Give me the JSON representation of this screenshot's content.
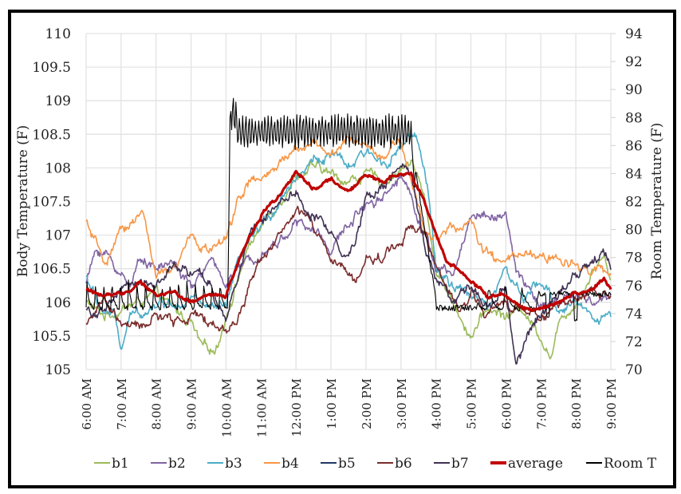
{
  "chart_data": {
    "type": "line",
    "title": "",
    "xlabel": "",
    "ylabel": "Body Temperature (F)",
    "y2label": "Room Temperature (F)",
    "ylim": [
      105,
      110
    ],
    "y2lim": [
      70,
      94
    ],
    "yticks": [
      "105",
      "105.5",
      "106",
      "106.5",
      "107",
      "107.5",
      "108",
      "108.5",
      "109",
      "109.5",
      "110"
    ],
    "y2ticks": [
      "70",
      "72",
      "74",
      "76",
      "78",
      "80",
      "82",
      "84",
      "86",
      "88",
      "90",
      "92",
      "94"
    ],
    "x_unit": "hours since 6:00 AM",
    "xlim": [
      0,
      15
    ],
    "categories": [
      "6:00 AM",
      "7:00 AM",
      "8:00 AM",
      "9:00 AM",
      "10:00 AM",
      "11:00 AM",
      "12:00 PM",
      "1:00 PM",
      "2:00 PM",
      "3:00 PM",
      "4:00 PM",
      "5:00 PM",
      "6:00 PM",
      "7:00 PM",
      "8:00 PM",
      "9:00 PM"
    ],
    "grid": true,
    "legend_position": "bottom",
    "series": [
      {
        "name": "b1",
        "axis": "left",
        "color": "#9bbb59",
        "width": 1.6,
        "x": [
          0,
          0.5,
          1,
          1.5,
          2,
          2.5,
          3,
          3.3,
          3.7,
          4,
          4.3,
          4.7,
          5,
          5.5,
          6,
          6.5,
          7,
          7.5,
          8,
          8.5,
          9,
          9.3,
          9.7,
          10,
          10.5,
          11,
          11.5,
          12,
          12.5,
          13,
          13.3,
          13.6,
          14,
          14.5,
          14.8,
          15
        ],
        "y": [
          106.0,
          105.8,
          105.9,
          106.0,
          106.1,
          105.9,
          105.7,
          105.3,
          105.3,
          105.8,
          106.3,
          106.9,
          107.1,
          107.5,
          107.9,
          108.0,
          107.9,
          107.8,
          107.9,
          107.8,
          108.0,
          108.1,
          107.5,
          106.5,
          106.0,
          105.5,
          105.9,
          105.8,
          105.9,
          105.5,
          105.2,
          105.8,
          106.0,
          106.5,
          106.7,
          106.4
        ]
      },
      {
        "name": "b2",
        "axis": "left",
        "color": "#8064a2",
        "width": 1.6,
        "x": [
          0,
          0.3,
          0.6,
          1,
          1.3,
          1.6,
          2,
          2.5,
          3,
          3.5,
          4,
          4.3,
          4.7,
          5,
          5.5,
          6,
          6.3,
          6.7,
          7,
          7.3,
          7.7,
          8,
          8.5,
          9,
          9.3,
          9.7,
          10,
          10.5,
          11,
          11.5,
          12,
          12.3,
          12.7,
          13,
          13.5,
          14,
          14.5,
          15
        ],
        "y": [
          106.3,
          106.8,
          106.7,
          106.4,
          106.3,
          106.7,
          106.5,
          106.6,
          106.2,
          106.6,
          106.3,
          106.5,
          106.6,
          106.8,
          106.9,
          107.2,
          107.1,
          107.0,
          106.8,
          107.0,
          107.3,
          107.5,
          107.6,
          107.9,
          107.6,
          107.0,
          106.5,
          106.4,
          107.3,
          107.3,
          107.3,
          106.4,
          106.2,
          105.9,
          106.0,
          106.1,
          106.0,
          106.1
        ]
      },
      {
        "name": "b3",
        "axis": "left",
        "color": "#4bacc6",
        "width": 1.6,
        "x": [
          0,
          0.4,
          0.8,
          1,
          1.3,
          1.7,
          2,
          2.5,
          3,
          3.5,
          4,
          4.3,
          4.7,
          5,
          5.5,
          6,
          6.5,
          7,
          7.5,
          8,
          8.5,
          9,
          9.3,
          9.5,
          9.8,
          10,
          10.5,
          11,
          11.5,
          12,
          12.5,
          13,
          13.5,
          14,
          14.5,
          15
        ],
        "y": [
          106.4,
          105.9,
          105.8,
          105.3,
          105.8,
          105.9,
          106.0,
          106.0,
          106.1,
          105.9,
          105.9,
          106.5,
          106.9,
          107.1,
          107.5,
          107.9,
          108.1,
          108.2,
          108.0,
          108.2,
          108.1,
          108.3,
          108.5,
          108.3,
          107.6,
          106.5,
          106.2,
          106.1,
          106.0,
          106.5,
          106.0,
          106.3,
          105.9,
          106.0,
          105.8,
          105.8
        ]
      },
      {
        "name": "b4",
        "axis": "left",
        "color": "#f79646",
        "width": 1.6,
        "x": [
          0,
          0.3,
          0.6,
          1,
          1.3,
          1.6,
          2,
          2.3,
          2.6,
          3,
          3.3,
          3.6,
          4,
          4.3,
          4.7,
          5,
          5.5,
          6,
          6.5,
          7,
          7.5,
          8,
          8.5,
          9,
          9.3,
          9.7,
          10,
          10.5,
          11,
          11.3,
          11.7,
          12,
          12.5,
          13,
          13.5,
          14,
          14.5,
          15
        ],
        "y": [
          107.2,
          106.8,
          106.6,
          107.0,
          107.2,
          107.4,
          106.4,
          106.4,
          106.5,
          107.0,
          106.8,
          106.8,
          106.9,
          107.5,
          107.8,
          107.8,
          108.0,
          108.3,
          108.4,
          108.2,
          108.4,
          108.4,
          108.2,
          108.4,
          107.8,
          107.0,
          107.0,
          107.1,
          107.2,
          106.8,
          106.6,
          106.6,
          106.7,
          106.7,
          106.6,
          106.6,
          106.5,
          106.4
        ]
      },
      {
        "name": "b5",
        "axis": "left",
        "color": "#1f3864",
        "width": 1.4,
        "x": [],
        "y": []
      },
      {
        "name": "b6",
        "axis": "left",
        "color": "#7b2c2c",
        "width": 1.6,
        "x": [
          0,
          0.5,
          1,
          1.5,
          2,
          2.5,
          3,
          3.5,
          4,
          4.3,
          4.7,
          5,
          5.5,
          6,
          6.3,
          6.7,
          7,
          7.3,
          7.7,
          8,
          8.5,
          9,
          9.3,
          9.7,
          10,
          10.3,
          10.7,
          11,
          11.5,
          12,
          12.5,
          13,
          13.5,
          14,
          14.5,
          15
        ],
        "y": [
          105.7,
          106.0,
          105.7,
          105.6,
          105.8,
          105.7,
          105.8,
          105.7,
          105.6,
          105.7,
          106.3,
          106.7,
          107.0,
          107.3,
          107.3,
          106.9,
          106.6,
          106.5,
          106.3,
          106.6,
          106.7,
          106.9,
          107.2,
          107.0,
          106.5,
          106.2,
          105.8,
          106.2,
          105.8,
          106.0,
          105.9,
          105.8,
          106.0,
          106.0,
          106.2,
          106.1
        ]
      },
      {
        "name": "b7",
        "axis": "left",
        "color": "#403152",
        "width": 1.6,
        "x": [
          0,
          0.5,
          1,
          1.5,
          2,
          2.5,
          3,
          3.5,
          4,
          4.3,
          4.7,
          5,
          5.5,
          6,
          6.3,
          6.7,
          7,
          7.3,
          7.7,
          8,
          8.5,
          9,
          9.3,
          9.7,
          10,
          10.5,
          11,
          11.5,
          12,
          12.3,
          12.6,
          13,
          13.5,
          14,
          14.5,
          14.8,
          15
        ],
        "y": [
          105.9,
          105.8,
          106.2,
          106.3,
          106.3,
          106.5,
          106.4,
          106.3,
          105.8,
          106.2,
          107.1,
          107.2,
          107.5,
          107.7,
          107.3,
          107.2,
          107.1,
          106.7,
          106.9,
          107.6,
          107.8,
          108.0,
          107.8,
          106.8,
          106.4,
          106.0,
          106.2,
          106.0,
          106.2,
          105.1,
          105.5,
          105.8,
          106.1,
          106.5,
          106.6,
          106.8,
          106.5
        ]
      },
      {
        "name": "average",
        "axis": "left",
        "color": "#c00000",
        "width": 3.2,
        "x": [
          0,
          0.5,
          1,
          1.5,
          2,
          2.5,
          3,
          3.5,
          4,
          4.2,
          4.5,
          5,
          5.5,
          6,
          6.5,
          7,
          7.5,
          8,
          8.5,
          9,
          9.3,
          9.6,
          10,
          10.3,
          10.7,
          11,
          11.5,
          12,
          12.5,
          13,
          13.5,
          14,
          14.5,
          14.8,
          15
        ],
        "y": [
          106.2,
          106.1,
          106.1,
          106.3,
          106.1,
          106.15,
          106.0,
          106.1,
          106.1,
          106.4,
          106.8,
          107.3,
          107.6,
          107.95,
          107.7,
          107.8,
          107.65,
          107.9,
          107.8,
          107.95,
          107.9,
          107.6,
          107.0,
          106.6,
          106.5,
          106.3,
          106.1,
          106.1,
          105.9,
          105.9,
          106.0,
          106.1,
          106.2,
          106.35,
          106.2
        ]
      },
      {
        "name": "Room T",
        "axis": "right",
        "color": "#000000",
        "width": 1.1,
        "note": "Cycles ~74-76 before 10 AM; jumps to ~86-88 oscillating until ~3:20 PM; decays to ~74 with periodic dips to ~72-74 afterwards",
        "x": [
          0,
          4.05,
          4.1,
          4.2,
          9.3,
          9.35,
          9.6,
          10,
          10.5,
          11,
          12,
          13,
          14,
          15
        ],
        "y": [
          74.5,
          74.8,
          88.5,
          88.0,
          88.0,
          86.0,
          78.0,
          75.0,
          74.2,
          74.0,
          74.5,
          75.2,
          75.4,
          74.8
        ]
      }
    ]
  },
  "legend": {
    "items": [
      {
        "label": "b1",
        "color": "#9bbb59",
        "thick": false
      },
      {
        "label": "b2",
        "color": "#8064a2",
        "thick": false
      },
      {
        "label": "b3",
        "color": "#4bacc6",
        "thick": false
      },
      {
        "label": "b4",
        "color": "#f79646",
        "thick": false
      },
      {
        "label": "b5",
        "color": "#1f3864",
        "thick": false
      },
      {
        "label": "b6",
        "color": "#7b2c2c",
        "thick": false
      },
      {
        "label": "b7",
        "color": "#403152",
        "thick": false
      },
      {
        "label": "average",
        "color": "#c00000",
        "thick": true
      },
      {
        "label": "Room T",
        "color": "#000000",
        "thick": false
      }
    ]
  }
}
